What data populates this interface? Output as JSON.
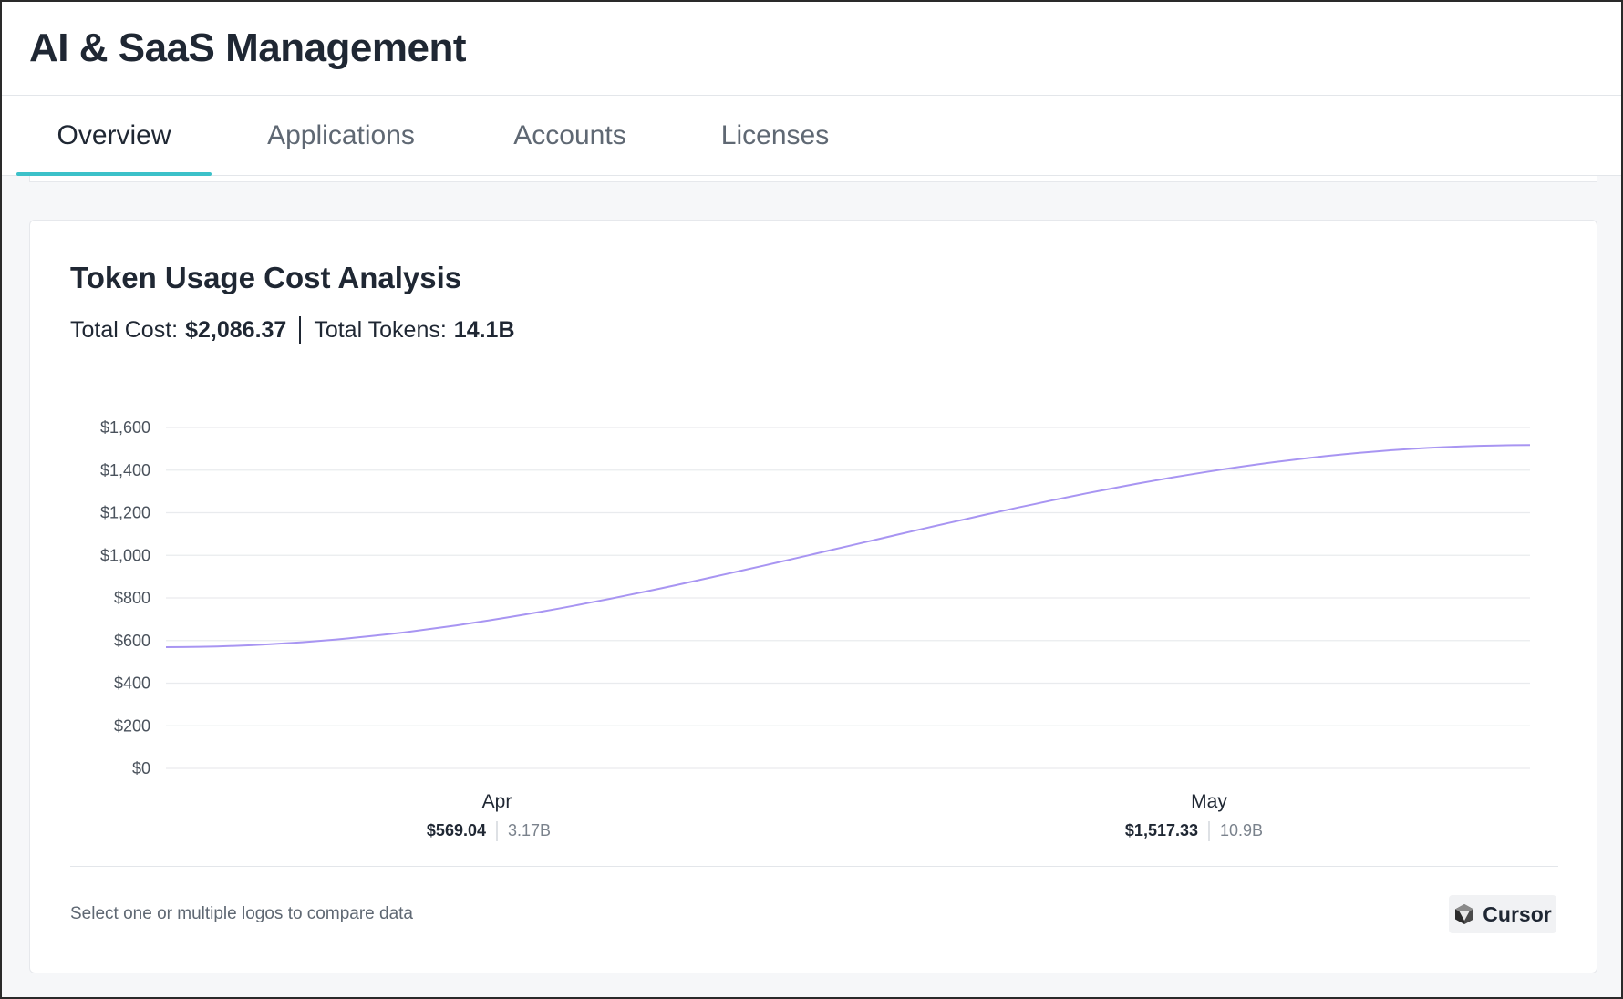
{
  "header": {
    "title": "AI & SaaS Management"
  },
  "tabs": [
    {
      "label": "Overview",
      "active": true
    },
    {
      "label": "Applications",
      "active": false
    },
    {
      "label": "Accounts",
      "active": false
    },
    {
      "label": "Licenses",
      "active": false
    }
  ],
  "card": {
    "title": "Token Usage Cost Analysis",
    "total_cost_label": "Total Cost:",
    "total_cost_value": "$2,086.37",
    "total_tokens_label": "Total Tokens:",
    "total_tokens_value": "14.1B",
    "hint": "Select one or multiple logos to compare data",
    "logo_chip": {
      "label": "Cursor",
      "icon": "cursor-logo-icon"
    }
  },
  "colors": {
    "accent_tab": "#3cc1c9",
    "series_line": "#a895f2"
  },
  "chart_data": {
    "type": "line",
    "categories": [
      "Apr",
      "May"
    ],
    "series": [
      {
        "values": [
          569.04,
          1517.33
        ],
        "tokens": [
          "3.17B",
          "10.9B"
        ],
        "value_labels": [
          "$569.04",
          "$1,517.33"
        ]
      }
    ],
    "y_ticks": [
      "$0",
      "$200",
      "$400",
      "$600",
      "$800",
      "$1,000",
      "$1,200",
      "$1,400",
      "$1,600"
    ],
    "ylim": [
      0,
      1600
    ],
    "grid": true,
    "xlabel": "",
    "ylabel": ""
  }
}
